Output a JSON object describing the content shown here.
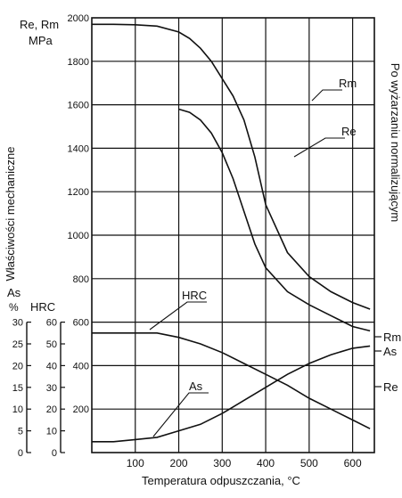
{
  "chart_data": {
    "type": "line",
    "title": "",
    "xlabel": "Temperatura odpuszczania, °C",
    "ylabel": "Właściwości mechaniczne",
    "right_label": "Po wyżarzaniu normalizującym",
    "units": {
      "strength_name": "Re, Rm",
      "strength_unit": "MPa",
      "as_name": "As",
      "as_unit": "%",
      "hrc_name": "HRC"
    },
    "x_ticks": [
      100,
      200,
      300,
      400,
      500,
      600
    ],
    "xlim": [
      0,
      650
    ],
    "y_strength": {
      "ticks": [
        200,
        400,
        600,
        800,
        1000,
        1200,
        1400,
        1600,
        1800,
        2000
      ],
      "range": [
        0,
        2000
      ]
    },
    "y_as": {
      "ticks": [
        0,
        5,
        10,
        15,
        20,
        25,
        30
      ],
      "range": [
        0,
        30
      ]
    },
    "y_hrc": {
      "ticks": [
        0,
        10,
        20,
        30,
        40,
        50,
        60
      ],
      "range": [
        0,
        60
      ]
    },
    "grid": true,
    "series": [
      {
        "name": "Rm",
        "axis": "strength",
        "label_pos": "left",
        "x": [
          0,
          50,
          100,
          150,
          200,
          225,
          250,
          275,
          300,
          325,
          350,
          375,
          400,
          450,
          500,
          550,
          600,
          640
        ],
        "y": [
          1970,
          1970,
          1968,
          1962,
          1935,
          1905,
          1860,
          1800,
          1720,
          1640,
          1530,
          1360,
          1140,
          920,
          810,
          740,
          690,
          660
        ]
      },
      {
        "name": "Re",
        "axis": "strength",
        "label_pos": "left",
        "x": [
          200,
          225,
          250,
          275,
          300,
          325,
          350,
          375,
          400,
          450,
          500,
          550,
          600,
          640
        ],
        "y": [
          1580,
          1565,
          1530,
          1470,
          1380,
          1260,
          1110,
          960,
          850,
          740,
          680,
          630,
          580,
          560
        ]
      },
      {
        "name": "HRC",
        "axis": "hrc",
        "label_pos": "left",
        "x": [
          0,
          50,
          100,
          150,
          200,
          250,
          300,
          350,
          400,
          450,
          500,
          550,
          600,
          640
        ],
        "y": [
          55,
          55,
          55,
          55,
          53,
          50,
          46,
          41,
          36,
          31,
          25,
          20,
          15,
          11
        ]
      },
      {
        "name": "As",
        "axis": "as",
        "label_pos": "left",
        "x": [
          0,
          50,
          100,
          150,
          200,
          250,
          300,
          350,
          400,
          450,
          500,
          550,
          600,
          640
        ],
        "y": [
          2.5,
          2.5,
          3,
          3.5,
          5,
          6.5,
          9,
          12,
          15,
          18,
          20.5,
          22.5,
          24,
          24.5
        ]
      }
    ],
    "right_markers": [
      "Rm",
      "As",
      "Re"
    ]
  }
}
